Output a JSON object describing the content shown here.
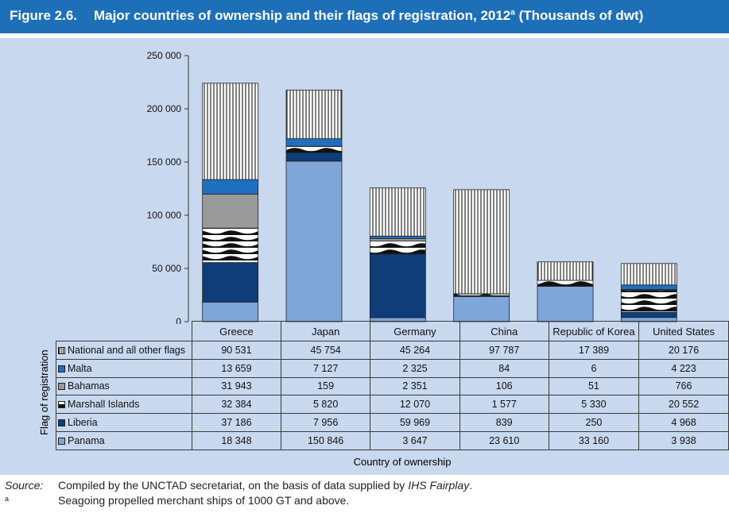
{
  "figure": {
    "number": "Figure 2.6.",
    "title": "Major countries of ownership and their flags of registration, 2012",
    "title_sup": "a",
    "units": "(Thousands of dwt)"
  },
  "chart_data": {
    "type": "bar",
    "stacked": true,
    "categories": [
      "Greece",
      "Japan",
      "Germany",
      "China",
      "Republic of Korea",
      "United States"
    ],
    "ylim": [
      0,
      250000
    ],
    "yticks": [
      0,
      50000,
      100000,
      150000,
      200000,
      250000
    ],
    "ytick_labels": [
      "0",
      "50 000",
      "100 000",
      "150 000",
      "200 000",
      "250 000"
    ],
    "xlabel": "Country of ownership",
    "ylabel": "Flag of registration",
    "series": [
      {
        "name": "Panama",
        "values": [
          18348,
          150846,
          3647,
          23610,
          33160,
          3938
        ],
        "color": "#7ea6d9",
        "pattern": "solid"
      },
      {
        "name": "Liberia",
        "values": [
          37186,
          7956,
          59969,
          839,
          250,
          4968
        ],
        "color": "#0e3d78",
        "pattern": "solid"
      },
      {
        "name": "Marshall Islands",
        "values": [
          32384,
          5820,
          12070,
          1577,
          5330,
          20552
        ],
        "color": "#ffffff",
        "pattern": "waves"
      },
      {
        "name": "Bahamas",
        "values": [
          31943,
          159,
          2351,
          106,
          51,
          766
        ],
        "color": "#9a9a9a",
        "pattern": "solid"
      },
      {
        "name": "Malta",
        "values": [
          13659,
          7127,
          2325,
          84,
          6,
          4223
        ],
        "color": "#1f6fc1",
        "pattern": "solid"
      },
      {
        "name": "National and all other flags",
        "values": [
          90531,
          45754,
          45264,
          97787,
          17389,
          20176
        ],
        "color": "#ffffff",
        "pattern": "vertical-lines"
      }
    ],
    "table_rows": [
      {
        "label": "National and all other flags",
        "cells": [
          "90 531",
          "45 754",
          "45 264",
          "97 787",
          "17 389",
          "20 176"
        ],
        "swatch": "vertical-lines"
      },
      {
        "label": "Malta",
        "cells": [
          "13 659",
          "7 127",
          "2 325",
          "84",
          "6",
          "4 223"
        ],
        "swatch": "malta"
      },
      {
        "label": "Bahamas",
        "cells": [
          "31 943",
          "159",
          "2 351",
          "106",
          "51",
          "766"
        ],
        "swatch": "bahamas"
      },
      {
        "label": "Marshall Islands",
        "cells": [
          "32 384",
          "5 820",
          "12 070",
          "1 577",
          "5 330",
          "20 552"
        ],
        "swatch": "waves"
      },
      {
        "label": "Liberia",
        "cells": [
          "37 186",
          "7 956",
          "59 969",
          "839",
          "250",
          "4 968"
        ],
        "swatch": "liberia"
      },
      {
        "label": "Panama",
        "cells": [
          "18 348",
          "150 846",
          "3 647",
          "23 610",
          "33 160",
          "3 938"
        ],
        "swatch": "panama"
      }
    ]
  },
  "source": {
    "label": "Source:",
    "text": "Compiled by the UNCTAD secretariat, on the basis of data supplied by ",
    "text_italic": "IHS Fairplay",
    "text_end": "."
  },
  "footnote": {
    "key": "a",
    "text": "Seagoing propelled merchant ships of 1000 GT and above."
  }
}
